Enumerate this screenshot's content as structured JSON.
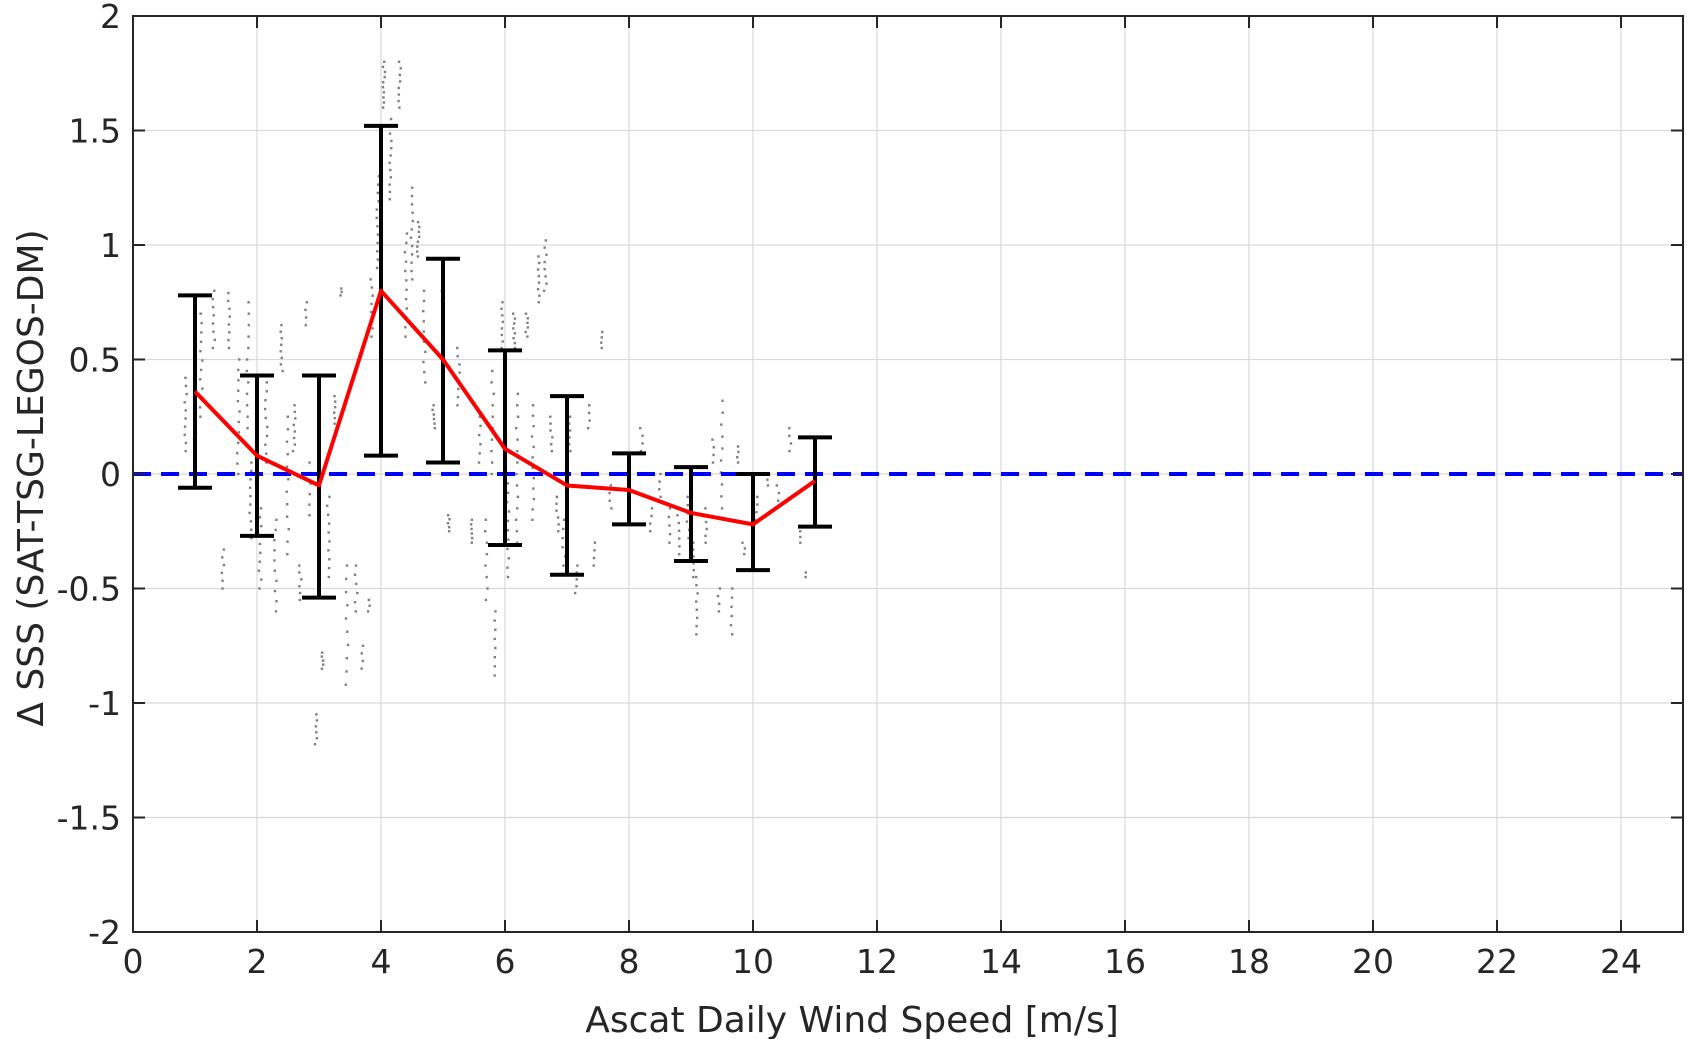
{
  "chart_data": {
    "type": "scatter",
    "title": "",
    "xlabel": "Ascat Daily Wind Speed [m/s]",
    "ylabel": "Δ SSS (SAT-TSG-LEGOS-DM)",
    "xlim": [
      0,
      25
    ],
    "ylim": [
      -2,
      2
    ],
    "xticks": [
      0,
      2,
      4,
      6,
      8,
      10,
      12,
      14,
      16,
      18,
      20,
      22,
      24
    ],
    "yticks": [
      -2,
      -1.5,
      -1,
      -0.5,
      0,
      0.5,
      1,
      1.5,
      2
    ],
    "grid": true,
    "legend": "none",
    "colors": {
      "scatter": "#808080",
      "mean_line": "#ff0000",
      "error_bars": "#000000",
      "zero_line": "#0000ff",
      "grid": "#d9d9d9",
      "axes": "#262626"
    },
    "reference_line": {
      "y": 0,
      "style": "dashed"
    },
    "binned_mean": {
      "x": [
        1,
        2,
        3,
        4,
        5,
        6,
        7,
        8,
        9,
        10,
        11
      ],
      "mean": [
        0.36,
        0.08,
        -0.05,
        0.8,
        0.5,
        0.11,
        -0.05,
        -0.07,
        -0.17,
        -0.22,
        -0.03
      ],
      "upper": [
        0.78,
        0.43,
        0.43,
        1.52,
        0.94,
        0.54,
        0.34,
        0.09,
        0.03,
        0.0,
        0.16
      ],
      "lower": [
        -0.06,
        -0.27,
        -0.54,
        0.08,
        0.05,
        -0.31,
        -0.44,
        -0.22,
        -0.38,
        -0.42,
        -0.23
      ]
    },
    "scatter_clusters": [
      {
        "x": 0.85,
        "ymin": 0.1,
        "ymax": 0.42,
        "n": 10
      },
      {
        "x": 1.0,
        "ymin": 0.05,
        "ymax": 0.35,
        "n": 10
      },
      {
        "x": 1.1,
        "ymin": 0.25,
        "ymax": 0.7,
        "n": 12
      },
      {
        "x": 1.3,
        "ymin": 0.55,
        "ymax": 0.8,
        "n": 8
      },
      {
        "x": 1.45,
        "ymin": -0.5,
        "ymax": -0.33,
        "n": 6
      },
      {
        "x": 1.55,
        "ymin": 0.55,
        "ymax": 0.79,
        "n": 8
      },
      {
        "x": 1.7,
        "ymin": 0.0,
        "ymax": 0.5,
        "n": 12
      },
      {
        "x": 1.85,
        "ymin": 0.2,
        "ymax": 0.75,
        "n": 12
      },
      {
        "x": 1.9,
        "ymin": -0.28,
        "ymax": 0.05,
        "n": 10
      },
      {
        "x": 2.05,
        "ymin": -0.5,
        "ymax": -0.15,
        "n": 10
      },
      {
        "x": 2.15,
        "ymin": 0.05,
        "ymax": 0.4,
        "n": 10
      },
      {
        "x": 2.3,
        "ymin": -0.6,
        "ymax": -0.2,
        "n": 10
      },
      {
        "x": 2.4,
        "ymin": 0.45,
        "ymax": 0.65,
        "n": 8
      },
      {
        "x": 2.5,
        "ymin": -0.35,
        "ymax": 0.25,
        "n": 12
      },
      {
        "x": 2.6,
        "ymin": 0.1,
        "ymax": 0.3,
        "n": 8
      },
      {
        "x": 2.7,
        "ymin": -0.55,
        "ymax": -0.4,
        "n": 6
      },
      {
        "x": 2.8,
        "ymin": 0.65,
        "ymax": 0.75,
        "n": 4
      },
      {
        "x": 2.85,
        "ymin": -0.18,
        "ymax": 0.05,
        "n": 6
      },
      {
        "x": 2.95,
        "ymin": -1.18,
        "ymax": -1.05,
        "n": 6
      },
      {
        "x": 3.05,
        "ymin": -0.85,
        "ymax": -0.78,
        "n": 5
      },
      {
        "x": 3.15,
        "ymin": -0.45,
        "ymax": -0.1,
        "n": 10
      },
      {
        "x": 3.25,
        "ymin": 0.22,
        "ymax": 0.34,
        "n": 6
      },
      {
        "x": 3.35,
        "ymin": 0.78,
        "ymax": 0.81,
        "n": 3
      },
      {
        "x": 3.45,
        "ymin": -0.92,
        "ymax": -0.4,
        "n": 10
      },
      {
        "x": 3.6,
        "ymin": -0.6,
        "ymax": -0.4,
        "n": 6
      },
      {
        "x": 3.7,
        "ymin": -0.85,
        "ymax": -0.75,
        "n": 4
      },
      {
        "x": 3.8,
        "ymin": -0.6,
        "ymax": -0.55,
        "n": 3
      },
      {
        "x": 3.85,
        "ymin": 0.6,
        "ymax": 0.85,
        "n": 8
      },
      {
        "x": 3.95,
        "ymin": 0.9,
        "ymax": 1.3,
        "n": 12
      },
      {
        "x": 4.05,
        "ymin": 1.6,
        "ymax": 1.8,
        "n": 10
      },
      {
        "x": 4.15,
        "ymin": 1.2,
        "ymax": 1.55,
        "n": 12
      },
      {
        "x": 4.3,
        "ymin": 1.6,
        "ymax": 1.8,
        "n": 8
      },
      {
        "x": 4.4,
        "ymin": 0.6,
        "ymax": 1.05,
        "n": 12
      },
      {
        "x": 4.5,
        "ymin": 0.85,
        "ymax": 1.25,
        "n": 12
      },
      {
        "x": 4.6,
        "ymin": 0.95,
        "ymax": 1.1,
        "n": 8
      },
      {
        "x": 4.7,
        "ymin": 0.4,
        "ymax": 0.8,
        "n": 10
      },
      {
        "x": 4.85,
        "ymin": 0.2,
        "ymax": 0.3,
        "n": 6
      },
      {
        "x": 5.0,
        "ymin": 0.3,
        "ymax": 0.8,
        "n": 12
      },
      {
        "x": 5.1,
        "ymin": -0.25,
        "ymax": -0.18,
        "n": 5
      },
      {
        "x": 5.25,
        "ymin": 0.3,
        "ymax": 0.55,
        "n": 8
      },
      {
        "x": 5.45,
        "ymin": -0.3,
        "ymax": -0.2,
        "n": 6
      },
      {
        "x": 5.6,
        "ymin": 0.05,
        "ymax": 0.25,
        "n": 6
      },
      {
        "x": 5.7,
        "ymin": -0.55,
        "ymax": -0.2,
        "n": 8
      },
      {
        "x": 5.8,
        "ymin": 0.0,
        "ymax": 0.45,
        "n": 10
      },
      {
        "x": 5.85,
        "ymin": -0.88,
        "ymax": -0.6,
        "n": 8
      },
      {
        "x": 5.95,
        "ymin": 0.55,
        "ymax": 0.75,
        "n": 8
      },
      {
        "x": 6.05,
        "ymin": -0.45,
        "ymax": 0.0,
        "n": 12
      },
      {
        "x": 6.15,
        "ymin": 0.55,
        "ymax": 0.7,
        "n": 8
      },
      {
        "x": 6.2,
        "ymin": -0.3,
        "ymax": 0.35,
        "n": 14
      },
      {
        "x": 6.35,
        "ymin": 0.6,
        "ymax": 0.7,
        "n": 6
      },
      {
        "x": 6.45,
        "ymin": -0.2,
        "ymax": 0.3,
        "n": 12
      },
      {
        "x": 6.55,
        "ymin": 0.75,
        "ymax": 0.95,
        "n": 8
      },
      {
        "x": 6.65,
        "ymin": 0.8,
        "ymax": 1.02,
        "n": 8
      },
      {
        "x": 6.75,
        "ymin": 0.1,
        "ymax": 0.25,
        "n": 6
      },
      {
        "x": 6.85,
        "ymin": -0.25,
        "ymax": -0.1,
        "n": 6
      },
      {
        "x": 6.95,
        "ymin": -0.4,
        "ymax": -0.2,
        "n": 6
      },
      {
        "x": 7.05,
        "ymin": 0.1,
        "ymax": 0.25,
        "n": 6
      },
      {
        "x": 7.15,
        "ymin": -0.52,
        "ymax": -0.4,
        "n": 5
      },
      {
        "x": 7.35,
        "ymin": 0.2,
        "ymax": 0.3,
        "n": 4
      },
      {
        "x": 7.45,
        "ymin": -0.4,
        "ymax": -0.3,
        "n": 4
      },
      {
        "x": 7.55,
        "ymin": 0.55,
        "ymax": 0.62,
        "n": 4
      },
      {
        "x": 7.7,
        "ymin": -0.15,
        "ymax": -0.05,
        "n": 4
      },
      {
        "x": 8.0,
        "ymin": -0.1,
        "ymax": 0.05,
        "n": 5
      },
      {
        "x": 8.2,
        "ymin": 0.1,
        "ymax": 0.2,
        "n": 4
      },
      {
        "x": 8.35,
        "ymin": -0.25,
        "ymax": -0.15,
        "n": 4
      },
      {
        "x": 8.5,
        "ymin": -0.1,
        "ymax": 0.0,
        "n": 4
      },
      {
        "x": 8.65,
        "ymin": -0.3,
        "ymax": -0.15,
        "n": 5
      },
      {
        "x": 8.8,
        "ymin": -0.35,
        "ymax": -0.18,
        "n": 6
      },
      {
        "x": 8.95,
        "ymin": -0.28,
        "ymax": -0.1,
        "n": 6
      },
      {
        "x": 9.05,
        "ymin": -0.45,
        "ymax": -0.3,
        "n": 6
      },
      {
        "x": 9.1,
        "ymin": -0.7,
        "ymax": -0.45,
        "n": 8
      },
      {
        "x": 9.25,
        "ymin": -0.3,
        "ymax": -0.15,
        "n": 6
      },
      {
        "x": 9.35,
        "ymin": 0.05,
        "ymax": 0.15,
        "n": 4
      },
      {
        "x": 9.45,
        "ymin": -0.6,
        "ymax": -0.5,
        "n": 4
      },
      {
        "x": 9.5,
        "ymin": -0.15,
        "ymax": 0.32,
        "n": 10
      },
      {
        "x": 9.65,
        "ymin": -0.7,
        "ymax": -0.5,
        "n": 6
      },
      {
        "x": 9.75,
        "ymin": 0.05,
        "ymax": 0.12,
        "n": 4
      },
      {
        "x": 9.85,
        "ymin": -0.35,
        "ymax": -0.3,
        "n": 3
      },
      {
        "x": 10.05,
        "ymin": -0.2,
        "ymax": -0.1,
        "n": 4
      },
      {
        "x": 10.25,
        "ymin": -0.05,
        "ymax": 0.0,
        "n": 3
      },
      {
        "x": 10.4,
        "ymin": -0.15,
        "ymax": -0.05,
        "n": 4
      },
      {
        "x": 10.6,
        "ymin": 0.1,
        "ymax": 0.2,
        "n": 4
      },
      {
        "x": 10.75,
        "ymin": -0.3,
        "ymax": -0.25,
        "n": 3
      },
      {
        "x": 10.85,
        "ymin": -0.45,
        "ymax": -0.43,
        "n": 2
      }
    ]
  }
}
